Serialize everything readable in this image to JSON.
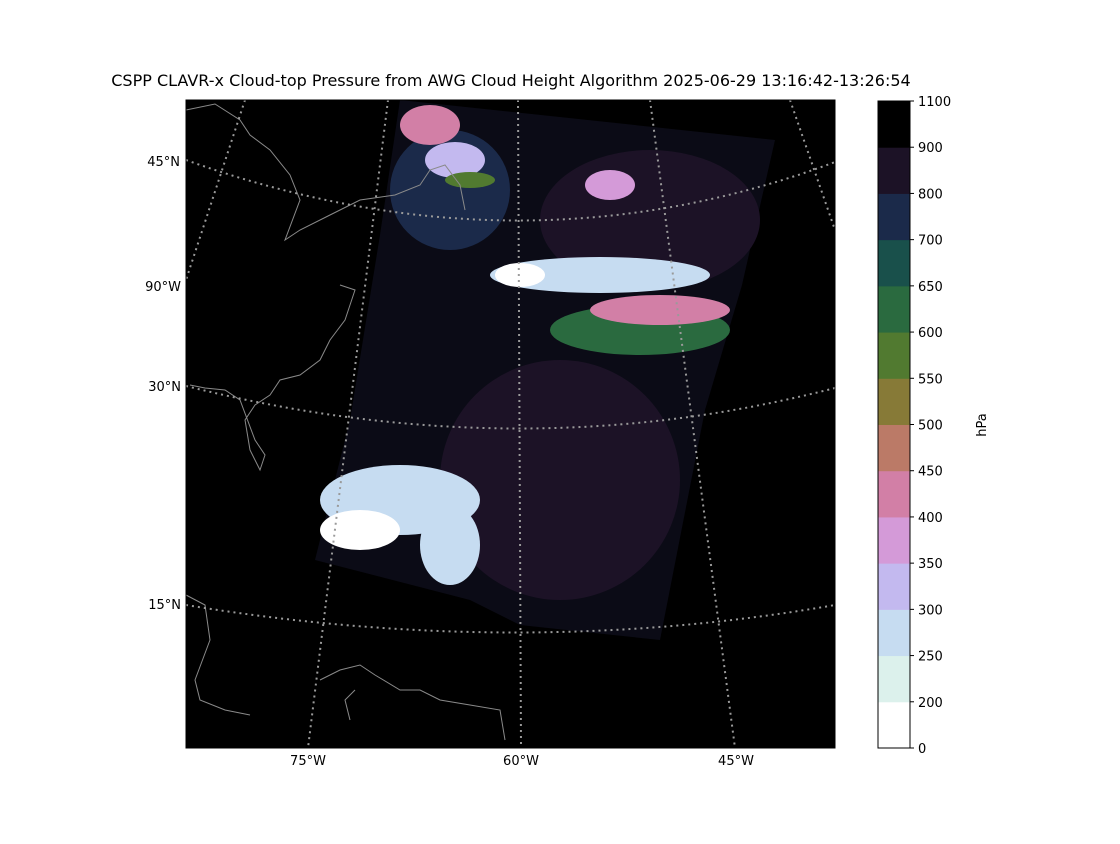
{
  "title": "CSPP CLAVR-x Cloud-top Pressure from AWG Cloud Height Algorithm 2025-06-29 13:16:42-13:26:54",
  "map": {
    "lat_labels": [
      "45°N",
      "90°W",
      "30°N",
      "15°N"
    ],
    "lon_labels": [
      "75°W",
      "60°W",
      "45°W"
    ]
  },
  "colorbar": {
    "label": "hPa",
    "ticks": [
      0,
      200,
      250,
      300,
      350,
      400,
      450,
      500,
      550,
      600,
      650,
      700,
      800,
      900,
      1100
    ],
    "colors": [
      "#ffffff",
      "#dcf1ec",
      "#c6dcf1",
      "#c3b9ef",
      "#d49ad8",
      "#d27fa6",
      "#bb7a67",
      "#877a37",
      "#517a30",
      "#2a6a3f",
      "#19504b",
      "#1b2a4a",
      "#1c1226",
      "#000000"
    ]
  }
}
